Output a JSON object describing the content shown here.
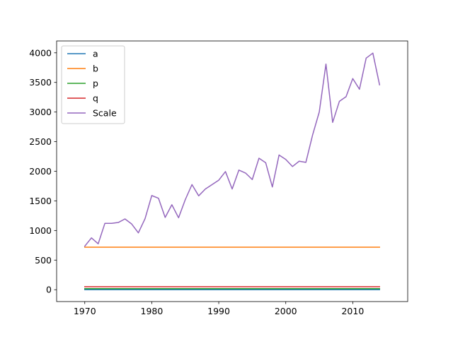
{
  "chart_data": {
    "type": "line",
    "title": "",
    "xlabel": "",
    "ylabel": "",
    "xlim": [
      1965.8,
      2018.2
    ],
    "ylim": [
      -200,
      4200
    ],
    "xticks": [
      1970,
      1980,
      1990,
      2000,
      2010
    ],
    "yticks": [
      0,
      500,
      1000,
      1500,
      2000,
      2500,
      3000,
      3500,
      4000
    ],
    "grid": false,
    "legend": "top-left",
    "x": [
      1970,
      1971,
      1972,
      1973,
      1974,
      1975,
      1976,
      1977,
      1978,
      1979,
      1980,
      1981,
      1982,
      1983,
      1984,
      1985,
      1986,
      1987,
      1988,
      1989,
      1990,
      1991,
      1992,
      1993,
      1994,
      1995,
      1996,
      1997,
      1998,
      1999,
      2000,
      2001,
      2002,
      2003,
      2004,
      2005,
      2006,
      2007,
      2008,
      2009,
      2010,
      2011,
      2012,
      2013,
      2014
    ],
    "series": [
      {
        "name": "a",
        "color": "#1f77b4",
        "values": [
          1,
          1,
          1,
          1,
          1,
          1,
          1,
          1,
          1,
          1,
          1,
          1,
          1,
          1,
          1,
          1,
          1,
          1,
          1,
          1,
          1,
          1,
          1,
          1,
          1,
          1,
          1,
          1,
          1,
          1,
          1,
          1,
          1,
          1,
          1,
          1,
          1,
          1,
          1,
          1,
          1,
          1,
          1,
          1,
          1
        ]
      },
      {
        "name": "b",
        "color": "#ff7f0e",
        "values": [
          718,
          718,
          718,
          718,
          718,
          718,
          718,
          718,
          718,
          718,
          718,
          718,
          718,
          718,
          718,
          718,
          718,
          718,
          718,
          718,
          718,
          718,
          718,
          718,
          718,
          718,
          718,
          718,
          718,
          718,
          718,
          718,
          718,
          718,
          718,
          718,
          718,
          718,
          718,
          718,
          718,
          718,
          718,
          718,
          718
        ]
      },
      {
        "name": "p",
        "color": "#2ca02c",
        "values": [
          18,
          18,
          18,
          18,
          18,
          18,
          18,
          18,
          18,
          18,
          18,
          18,
          18,
          18,
          18,
          18,
          18,
          18,
          18,
          18,
          18,
          18,
          18,
          18,
          18,
          18,
          18,
          18,
          18,
          18,
          18,
          18,
          18,
          18,
          18,
          18,
          18,
          18,
          18,
          18,
          18,
          18,
          18,
          18,
          18
        ]
      },
      {
        "name": "q",
        "color": "#d62728",
        "values": [
          50,
          50,
          50,
          50,
          50,
          50,
          50,
          50,
          50,
          50,
          50,
          50,
          50,
          50,
          50,
          50,
          50,
          50,
          50,
          50,
          50,
          50,
          50,
          50,
          50,
          50,
          50,
          50,
          50,
          50,
          50,
          50,
          50,
          50,
          50,
          50,
          50,
          50,
          50,
          50,
          50,
          50,
          50,
          50,
          50
        ]
      },
      {
        "name": "Scale",
        "color": "#9467bd",
        "values": [
          735,
          875,
          775,
          1120,
          1120,
          1135,
          1195,
          1110,
          960,
          1200,
          1590,
          1545,
          1220,
          1435,
          1215,
          1520,
          1775,
          1585,
          1700,
          1775,
          1850,
          1995,
          1700,
          2020,
          1970,
          1860,
          2220,
          2145,
          1735,
          2275,
          2200,
          2080,
          2170,
          2150,
          2610,
          3000,
          3810,
          2825,
          3180,
          3260,
          3565,
          3385,
          3910,
          3995,
          3460
        ]
      }
    ]
  }
}
